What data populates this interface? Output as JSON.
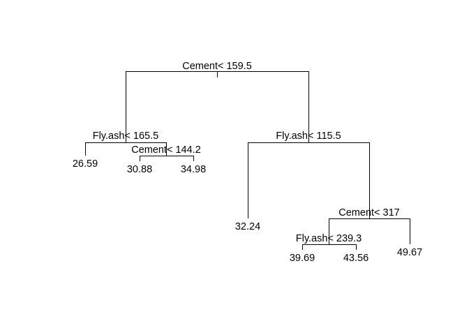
{
  "tree": {
    "root_split": "Cement< 159.5",
    "left_split": "Fly.ash< 165.5",
    "left_left_leaf": "26.59",
    "left_right_split": "Cement< 144.2",
    "left_right_left_leaf": "30.88",
    "left_right_right_leaf": "34.98",
    "right_split": "Fly.ash< 115.5",
    "right_left_leaf": "32.24",
    "right_right_split": "Cement< 317",
    "right_right_left_split": "Fly.ash< 239.3",
    "right_right_left_left_leaf": "39.69",
    "right_right_left_right_leaf": "43.56",
    "right_right_right_leaf": "49.67"
  }
}
